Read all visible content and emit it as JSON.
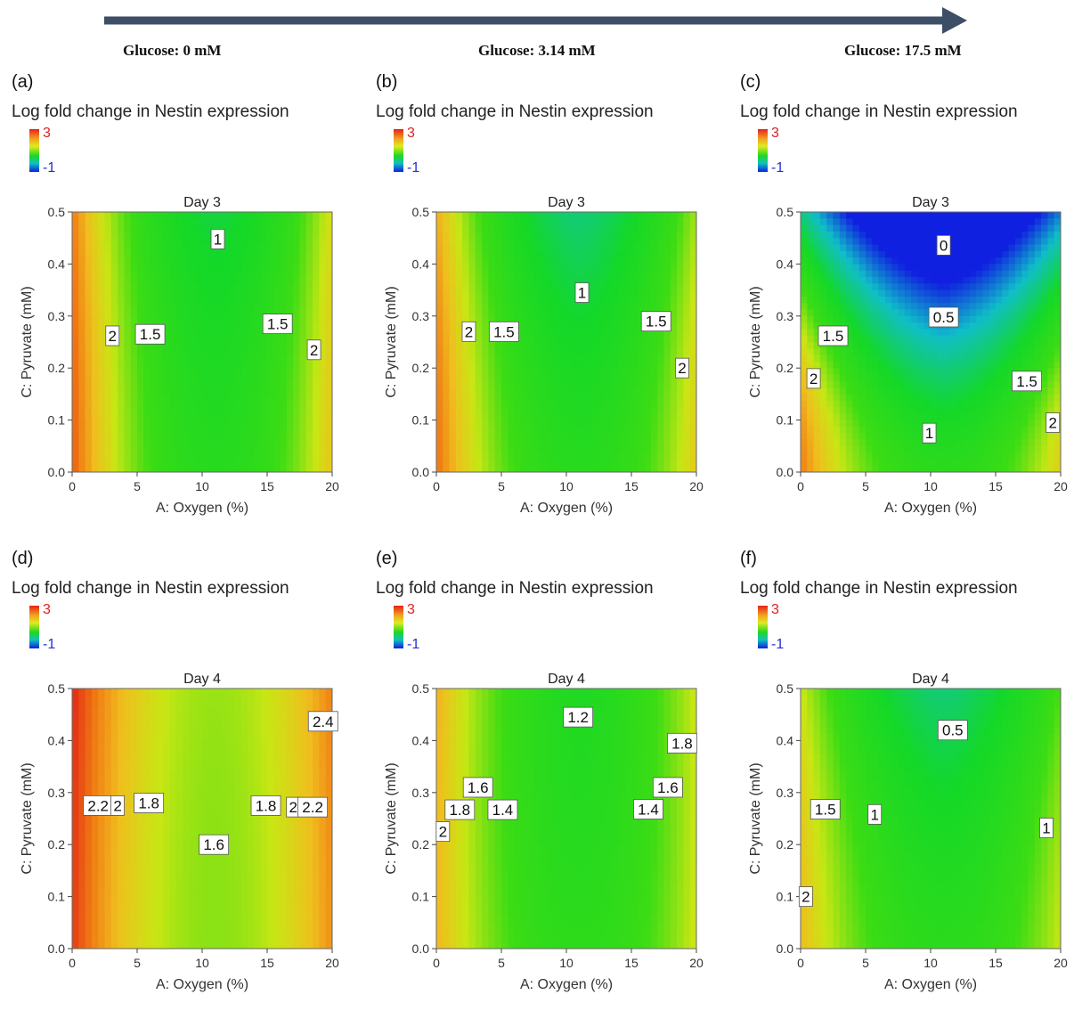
{
  "glucose_labels": [
    "Glucose: 0 mM",
    "Glucose: 3.14 mM",
    "Glucose: 17.5 mM"
  ],
  "colors": {
    "arrow": "#3d4f66",
    "high": "#e8201a",
    "mid": "#20d820",
    "low": "#1020e0"
  },
  "chart_data": [
    {
      "type": "heatmap",
      "panel": "(a)",
      "title": "Log fold change in Nestin expression",
      "subtitle": "Day 3",
      "xlabel": "A: Oxygen (%)",
      "ylabel": "C: Pyruvate (mM)",
      "xlim": [
        0,
        20
      ],
      "ylim": [
        0,
        0.5
      ],
      "xticks": [
        "0",
        "5",
        "10",
        "15",
        "20"
      ],
      "yticks": [
        "0.0",
        "0.1",
        "0.2",
        "0.3",
        "0.4",
        "0.5"
      ],
      "colorbar": {
        "max": "3",
        "min": "-1"
      },
      "model": {
        "edge": 1.5,
        "center": 0.93,
        "ycoef": 0.15,
        "yxcoef": 0.35,
        "curv": 1.0,
        "rise": 0.05
      },
      "contour_labels": [
        {
          "text": "1",
          "x": 11.2,
          "y": 0.448
        },
        {
          "text": "2",
          "x": 3.1,
          "y": 0.262
        },
        {
          "text": "1.5",
          "x": 6.0,
          "y": 0.265
        },
        {
          "text": "1.5",
          "x": 15.8,
          "y": 0.285
        },
        {
          "text": "2",
          "x": 18.6,
          "y": 0.235
        }
      ]
    },
    {
      "type": "heatmap",
      "panel": "(b)",
      "title": "Log fold change in Nestin expression",
      "subtitle": "Day 3",
      "xlabel": "A: Oxygen (%)",
      "ylabel": "C: Pyruvate (mM)",
      "xlim": [
        0,
        20
      ],
      "ylim": [
        0,
        0.5
      ],
      "xticks": [
        "0",
        "5",
        "10",
        "15",
        "20"
      ],
      "yticks": [
        "0.0",
        "0.1",
        "0.2",
        "0.3",
        "0.4",
        "0.5"
      ],
      "colorbar": {
        "max": "3",
        "min": "-1"
      },
      "model": {
        "edge": 1.4,
        "center": 0.95,
        "ycoef": 0.25,
        "yxcoef": 0.5,
        "curv": 1.0,
        "rise": 0.0
      },
      "contour_labels": [
        {
          "text": "1",
          "x": 11.2,
          "y": 0.345
        },
        {
          "text": "2",
          "x": 2.5,
          "y": 0.27
        },
        {
          "text": "1.5",
          "x": 5.2,
          "y": 0.27
        },
        {
          "text": "1.5",
          "x": 16.9,
          "y": 0.29
        },
        {
          "text": "2",
          "x": 18.9,
          "y": 0.2
        }
      ]
    },
    {
      "type": "heatmap",
      "panel": "(c)",
      "title": "Log fold change in Nestin expression",
      "subtitle": "Day 3",
      "xlabel": "A: Oxygen (%)",
      "ylabel": "C: Pyruvate (mM)",
      "xlim": [
        0,
        20
      ],
      "ylim": [
        0,
        0.5
      ],
      "xticks": [
        "0",
        "5",
        "10",
        "15",
        "20"
      ],
      "yticks": [
        "0.0",
        "0.1",
        "0.2",
        "0.3",
        "0.4",
        "0.5"
      ],
      "colorbar": {
        "max": "3",
        "min": "-1"
      },
      "model": {
        "edge": 1.3,
        "center": 1.0,
        "ycoef": 2.2,
        "yxcoef": 1.2,
        "curv": 1.0,
        "rise": 0.0
      },
      "contour_labels": [
        {
          "text": "0",
          "x": 11.0,
          "y": 0.436
        },
        {
          "text": "0.5",
          "x": 11.0,
          "y": 0.298
        },
        {
          "text": "1.5",
          "x": 2.5,
          "y": 0.262
        },
        {
          "text": "2",
          "x": 1.0,
          "y": 0.18
        },
        {
          "text": "1",
          "x": 9.9,
          "y": 0.075
        },
        {
          "text": "1.5",
          "x": 17.4,
          "y": 0.175
        },
        {
          "text": "2",
          "x": 19.4,
          "y": 0.095
        }
      ]
    },
    {
      "type": "heatmap",
      "panel": "(d)",
      "title": "Log fold change in Nestin expression",
      "subtitle": "Day 4",
      "xlabel": "A: Oxygen (%)",
      "ylabel": "C: Pyruvate (mM)",
      "xlim": [
        0,
        20
      ],
      "ylim": [
        0,
        0.5
      ],
      "xticks": [
        "0",
        "5",
        "10",
        "15",
        "20"
      ],
      "yticks": [
        "0.0",
        "0.1",
        "0.2",
        "0.3",
        "0.4",
        "0.5"
      ],
      "colorbar": {
        "max": "3",
        "min": "-1"
      },
      "model": {
        "edge": 1.1,
        "center": 1.58,
        "ycoef": -0.05,
        "yxcoef": 0.05,
        "curv": 1.0,
        "rise": 0.05
      },
      "contour_labels": [
        {
          "text": "2.4",
          "x": 19.3,
          "y": 0.437
        },
        {
          "text": "2.2",
          "x": 2.0,
          "y": 0.275
        },
        {
          "text": "2",
          "x": 3.5,
          "y": 0.275
        },
        {
          "text": "1.8",
          "x": 5.9,
          "y": 0.28
        },
        {
          "text": "1.6",
          "x": 10.9,
          "y": 0.2
        },
        {
          "text": "1.8",
          "x": 14.9,
          "y": 0.275
        },
        {
          "text": "2",
          "x": 17.0,
          "y": 0.272
        },
        {
          "text": "2.2",
          "x": 18.5,
          "y": 0.272
        }
      ]
    },
    {
      "type": "heatmap",
      "panel": "(e)",
      "title": "Log fold change in Nestin expression",
      "subtitle": "Day 4",
      "xlabel": "A: Oxygen (%)",
      "ylabel": "C: Pyruvate (mM)",
      "xlim": [
        0,
        20
      ],
      "ylim": [
        0,
        0.5
      ],
      "xticks": [
        "0",
        "5",
        "10",
        "15",
        "20"
      ],
      "yticks": [
        "0.0",
        "0.1",
        "0.2",
        "0.3",
        "0.4",
        "0.5"
      ],
      "colorbar": {
        "max": "3",
        "min": "-1"
      },
      "model": {
        "edge": 1.0,
        "center": 1.05,
        "ycoef": -0.1,
        "yxcoef": 0.35,
        "curv": 1.0,
        "rise": 0.0
      },
      "contour_labels": [
        {
          "text": "1.2",
          "x": 10.9,
          "y": 0.445
        },
        {
          "text": "1.8",
          "x": 18.9,
          "y": 0.395
        },
        {
          "text": "1.6",
          "x": 3.2,
          "y": 0.31
        },
        {
          "text": "1.8",
          "x": 1.8,
          "y": 0.267
        },
        {
          "text": "1.4",
          "x": 5.1,
          "y": 0.267
        },
        {
          "text": "2",
          "x": 0.5,
          "y": 0.225
        },
        {
          "text": "1.6",
          "x": 17.8,
          "y": 0.31
        },
        {
          "text": "1.4",
          "x": 16.3,
          "y": 0.268
        }
      ]
    },
    {
      "type": "heatmap",
      "panel": "(f)",
      "title": "Log fold change in Nestin expression",
      "subtitle": "Day 4",
      "xlabel": "A: Oxygen (%)",
      "ylabel": "C: Pyruvate (mM)",
      "xlim": [
        0,
        20
      ],
      "ylim": [
        0,
        0.5
      ],
      "xticks": [
        "0",
        "5",
        "10",
        "15",
        "20"
      ],
      "yticks": [
        "0.0",
        "0.1",
        "0.2",
        "0.3",
        "0.4",
        "0.5"
      ],
      "colorbar": {
        "max": "3",
        "min": "-1"
      },
      "model": {
        "edge": 1.0,
        "center": 1.0,
        "ycoef": 0.3,
        "yxcoef": 0.5,
        "curv": 1.0,
        "rise": 0.0
      },
      "contour_labels": [
        {
          "text": "0.5",
          "x": 11.7,
          "y": 0.42
        },
        {
          "text": "1.5",
          "x": 1.9,
          "y": 0.268
        },
        {
          "text": "1",
          "x": 5.7,
          "y": 0.258
        },
        {
          "text": "1",
          "x": 18.9,
          "y": 0.232
        },
        {
          "text": "2",
          "x": 0.4,
          "y": 0.1
        }
      ]
    }
  ]
}
